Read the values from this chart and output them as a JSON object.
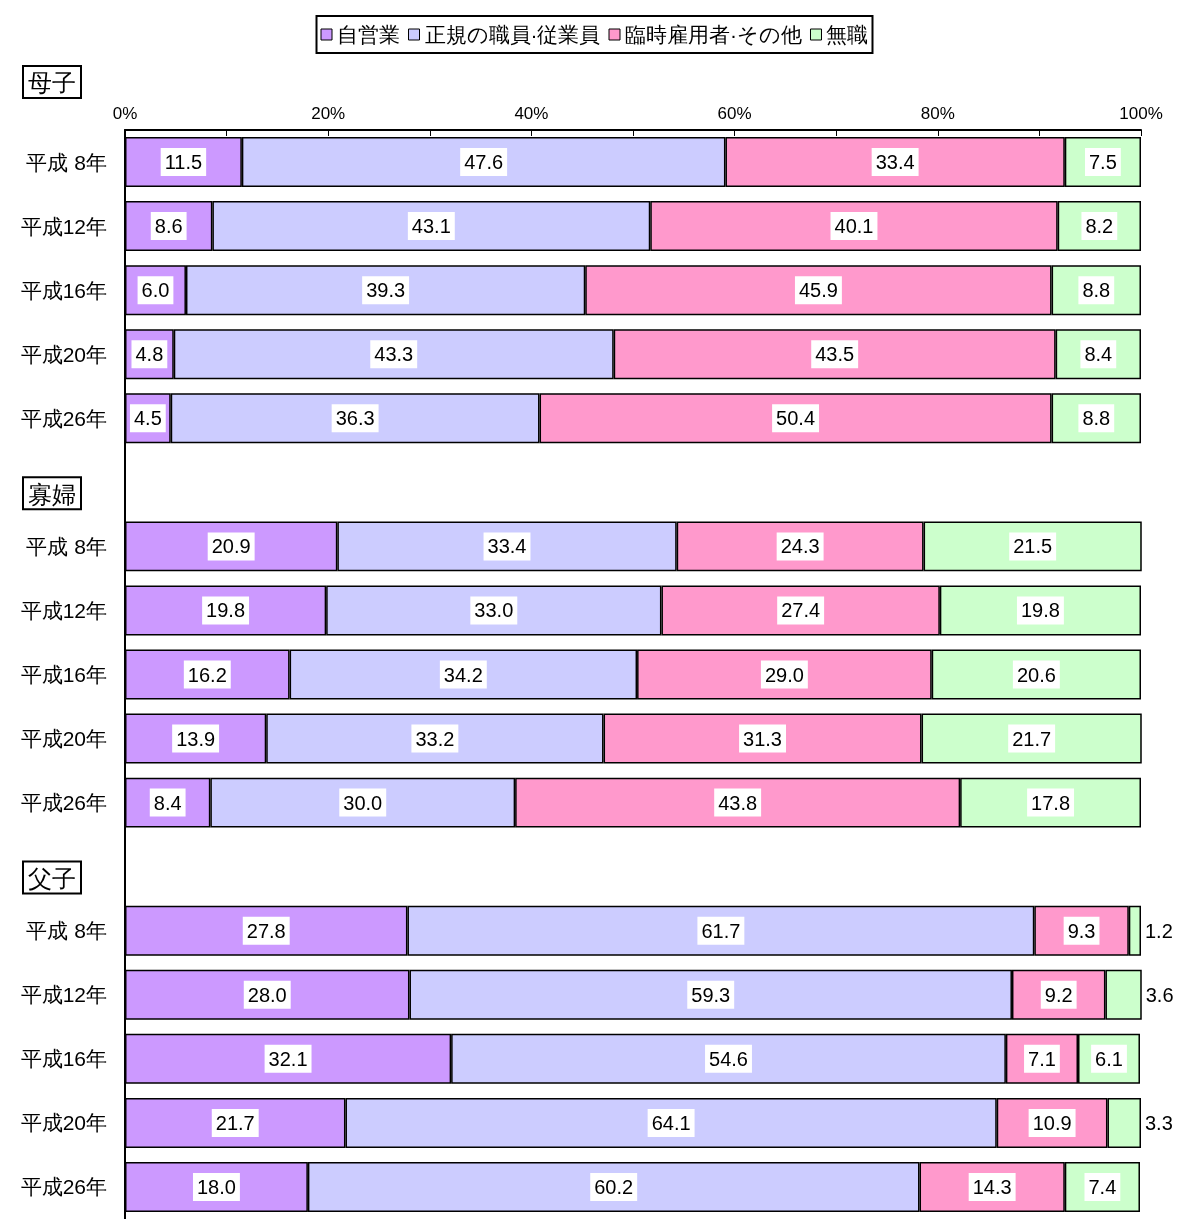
{
  "chart_data": {
    "type": "bar",
    "orientation": "horizontal",
    "stacked": true,
    "legend": "top",
    "grid": false,
    "categories": [
      "平成 8年",
      "平成12年",
      "平成16年",
      "平成20年",
      "平成26年",
      null,
      "平成 8年",
      "平成12年",
      "平成16年",
      "平成20年",
      "平成26年",
      null,
      "平成 8年",
      "平成12年",
      "平成16年",
      "平成20年",
      "平成26年"
    ],
    "series": [
      {
        "name": "自営業",
        "color": "#cc99ff",
        "values": [
          11.5,
          8.6,
          6.0,
          4.8,
          4.5,
          null,
          20.9,
          19.8,
          16.2,
          13.9,
          8.4,
          null,
          27.8,
          28.0,
          32.1,
          21.7,
          18.0
        ],
        "value_labels": [
          "11.5",
          "8.6",
          "6.0",
          "4.8",
          "4.5",
          null,
          "20.9",
          "19.8",
          "16.2",
          "13.9",
          "8.4",
          null,
          "27.8",
          "28.0",
          "32.1",
          "21.7",
          "18.0"
        ]
      },
      {
        "name": "正規の職員·従業員",
        "color": "#ccccff",
        "values": [
          47.6,
          43.1,
          39.3,
          43.3,
          36.3,
          null,
          33.4,
          33.0,
          34.2,
          33.2,
          30.0,
          null,
          61.7,
          59.3,
          54.6,
          64.1,
          60.2
        ],
        "value_labels": [
          "47.6",
          "43.1",
          "39.3",
          "43.3",
          "36.3",
          null,
          "33.4",
          "33.0",
          "34.2",
          "33.2",
          "30.0",
          null,
          "61.7",
          "59.3",
          "54.6",
          "64.1",
          "60.2"
        ]
      },
      {
        "name": "臨時雇用者·その他",
        "color": "#ff99cc",
        "values": [
          33.4,
          40.1,
          45.9,
          43.5,
          50.4,
          null,
          24.3,
          27.4,
          29.0,
          31.3,
          43.8,
          null,
          9.3,
          9.2,
          7.1,
          10.9,
          14.3
        ],
        "value_labels": [
          "33.4",
          "40.1",
          "45.9",
          "43.5",
          "50.4",
          null,
          "24.3",
          "27.4",
          "29.0",
          "31.3",
          "43.8",
          null,
          "9.3",
          "9.2",
          "7.1",
          "10.9",
          "14.3"
        ]
      },
      {
        "name": "無職",
        "color": "#ccffcc",
        "values": [
          7.5,
          8.2,
          8.8,
          8.4,
          8.8,
          null,
          21.5,
          19.8,
          20.6,
          21.7,
          17.8,
          null,
          1.2,
          3.6,
          6.1,
          3.3,
          7.4
        ],
        "value_labels": [
          "7.5",
          "8.2",
          "8.8",
          "8.4",
          "8.8",
          null,
          "21.5",
          "19.8",
          "20.6",
          "21.7",
          "17.8",
          null,
          "1.2",
          "3.6",
          "6.1",
          "3.3",
          "7.4"
        ]
      }
    ],
    "xlim": [
      0,
      100
    ],
    "xticks": [
      {
        "value": 0,
        "label": "0%"
      },
      {
        "value": 10,
        "label": null
      },
      {
        "value": 20,
        "label": "20%"
      },
      {
        "value": 30,
        "label": null
      },
      {
        "value": 40,
        "label": "40%"
      },
      {
        "value": 50,
        "label": null
      },
      {
        "value": 60,
        "label": "60%"
      },
      {
        "value": 70,
        "label": null
      },
      {
        "value": 80,
        "label": "80%"
      },
      {
        "value": 90,
        "label": null
      },
      {
        "value": 100,
        "label": "100%"
      }
    ],
    "annotations": [
      "母子",
      "寡婦",
      "父子"
    ]
  }
}
